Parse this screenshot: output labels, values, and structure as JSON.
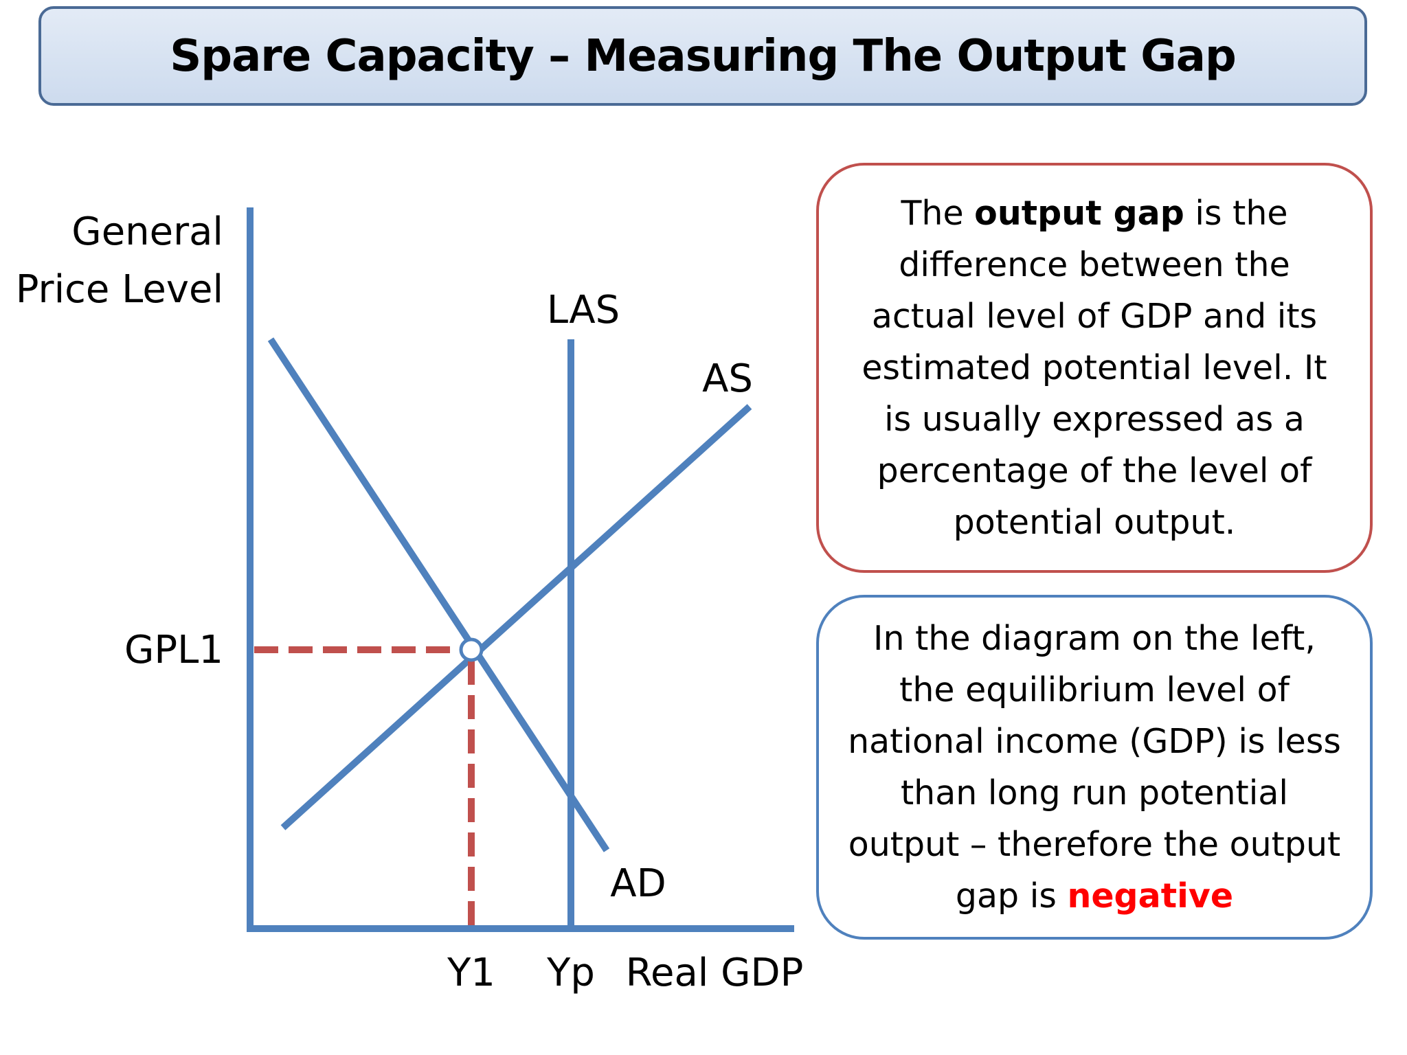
{
  "title": "Spare Capacity – Measuring The Output Gap",
  "diagram": {
    "y_axis_label_line1": "General",
    "y_axis_label_line2": "Price Level",
    "x_axis_label": "Real GDP",
    "curves": {
      "las": "LAS",
      "as": "AS",
      "ad": "AD"
    },
    "markers": {
      "price_level": "GPL1",
      "actual_output": "Y1",
      "potential_output": "Yp"
    },
    "colors": {
      "curve": "#4f81bd",
      "guide": "#c0504d"
    }
  },
  "definition_box": {
    "before": "The ",
    "term": "output gap",
    "after": " is the difference between the actual level of GDP and its estimated potential level. It is usually expressed as a percentage of the level of potential output."
  },
  "explanation_box": {
    "before": "In the diagram on the left, the equilibrium level of national income (GDP) is less than long run potential output – therefore the output gap is ",
    "highlight": "negative"
  }
}
